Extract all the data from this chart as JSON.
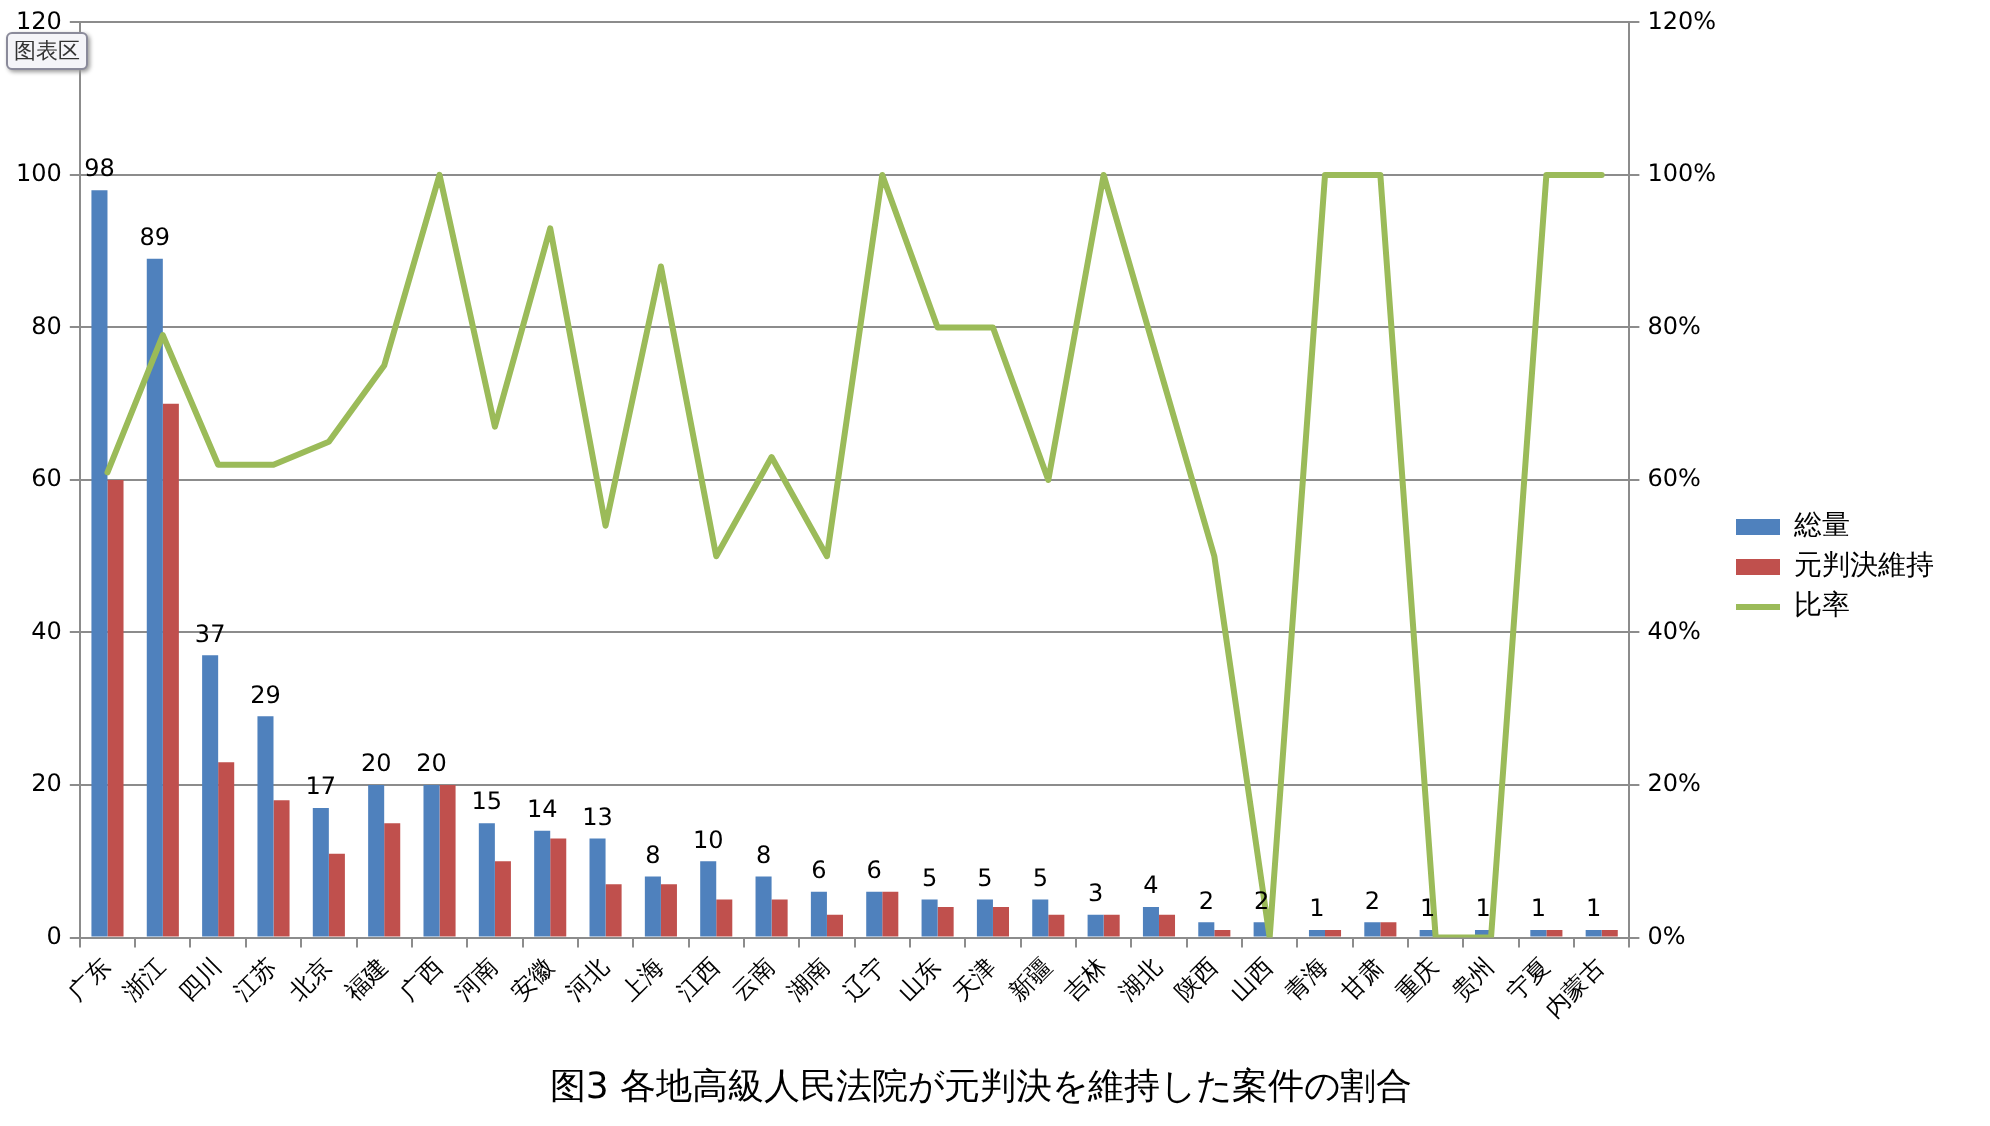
{
  "chart_data": {
    "type": "bar",
    "title": "图3 各地高級人民法院が元判決を維持した案件の割合",
    "annotations": [
      "图表区"
    ],
    "categories": [
      "广东",
      "浙江",
      "四川",
      "江苏",
      "北京",
      "福建",
      "广西",
      "河南",
      "安徽",
      "河北",
      "上海",
      "江西",
      "云南",
      "湖南",
      "辽宁",
      "山东",
      "天津",
      "新疆",
      "吉林",
      "湖北",
      "陕西",
      "山西",
      "青海",
      "甘肃",
      "重庆",
      "贵州",
      "宁夏",
      "内蒙古"
    ],
    "series": [
      {
        "name": "総量",
        "color": "#4f81bd",
        "values": [
          98,
          89,
          37,
          29,
          17,
          20,
          20,
          15,
          14,
          13,
          8,
          10,
          8,
          6,
          6,
          5,
          5,
          5,
          3,
          4,
          2,
          2,
          1,
          2,
          1,
          1,
          1,
          1
        ],
        "value_labels": [
          "98",
          "89",
          "37",
          "29",
          "17",
          "20",
          "20",
          "15",
          "14",
          "13",
          "8",
          "10",
          "8",
          "6",
          "6",
          "5",
          "5",
          "5",
          "3",
          "4",
          "2",
          "2",
          "1",
          "2",
          "1",
          "1",
          "1",
          "1"
        ]
      },
      {
        "name": "元判決維持",
        "color": "#c0504d",
        "values": [
          60,
          70,
          23,
          18,
          11,
          15,
          20,
          10,
          13,
          7,
          7,
          5,
          5,
          3,
          6,
          4,
          4,
          3,
          3,
          3,
          1,
          0,
          1,
          2,
          0,
          0,
          1,
          1
        ]
      },
      {
        "name": "比率",
        "type": "line",
        "axis": "y2",
        "color": "#9bbb59",
        "values": [
          61,
          79,
          62,
          62,
          65,
          75,
          100,
          67,
          93,
          54,
          88,
          50,
          63,
          50,
          100,
          80,
          80,
          60,
          100,
          75,
          50,
          0,
          100,
          100,
          0,
          0,
          100,
          100
        ]
      }
    ],
    "ylim": [
      0,
      120
    ],
    "yticks": [
      0,
      20,
      40,
      60,
      80,
      100,
      120
    ],
    "y2lim": [
      0,
      120
    ],
    "y2ticks": [
      {
        "value": 0,
        "label": "0%"
      },
      {
        "value": 20,
        "label": "20%"
      },
      {
        "value": 40,
        "label": "40%"
      },
      {
        "value": 60,
        "label": "60%"
      },
      {
        "value": 80,
        "label": "80%"
      },
      {
        "value": 100,
        "label": "100%"
      },
      {
        "value": 120,
        "label": "120%"
      }
    ],
    "grid": "y",
    "legend": "right",
    "marker": "none",
    "line_style": "solid"
  }
}
